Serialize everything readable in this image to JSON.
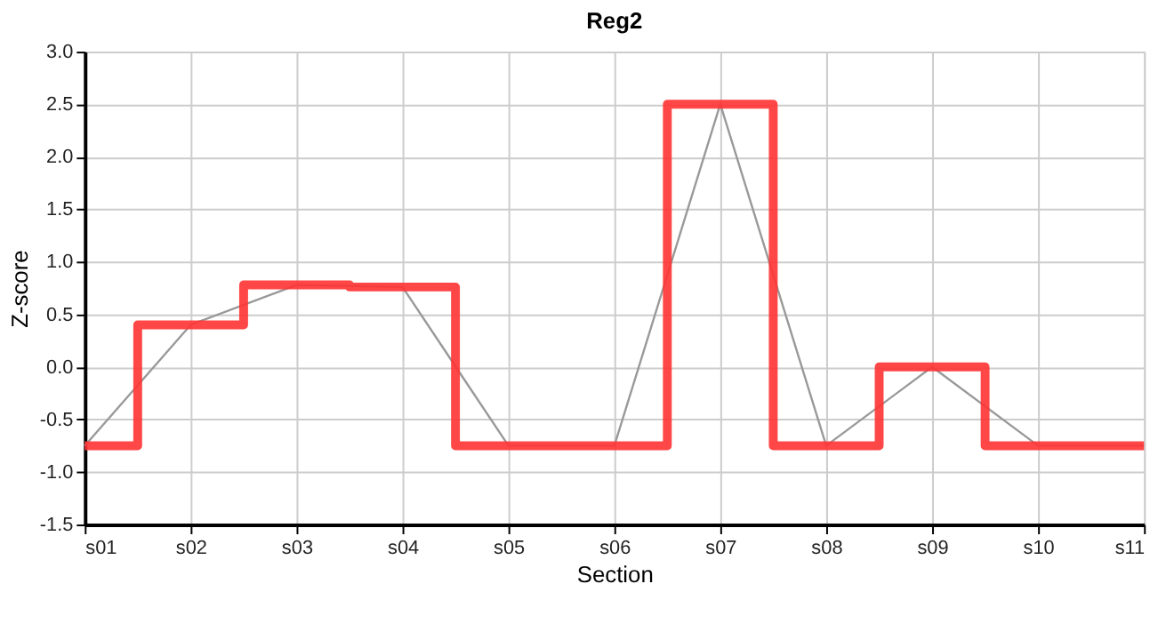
{
  "chart_data": {
    "type": "line",
    "title": "Reg2",
    "xlabel": "Section",
    "ylabel": "Z-score",
    "categories": [
      "s01",
      "s02",
      "s03",
      "s04",
      "s05",
      "s06",
      "s07",
      "s08",
      "s09",
      "s10",
      "s11"
    ],
    "series": [
      {
        "color": "#999999",
        "values": [
          -0.75,
          0.4,
          0.78,
          0.76,
          -0.75,
          -0.75,
          2.5,
          -0.75,
          0.0,
          -0.75,
          -0.75
        ]
      },
      {
        "type": "step",
        "color": "#ff3333",
        "values": [
          -0.75,
          0.4,
          0.78,
          0.76,
          -0.75,
          -0.75,
          2.5,
          -0.75,
          0.0,
          -0.75,
          -0.75
        ]
      }
    ],
    "ylim": [
      -1.5,
      3.0
    ],
    "yticks": [
      {
        "value": -1.5,
        "label": "-1.5"
      },
      {
        "value": -1,
        "label": "-1.0"
      },
      {
        "value": -0.5,
        "label": "-0.5"
      },
      {
        "value": 0,
        "label": "0.0"
      },
      {
        "value": 0.5,
        "label": "0.5"
      },
      {
        "value": 1,
        "label": "1.0"
      },
      {
        "value": 1.5,
        "label": "1.5"
      },
      {
        "value": 2,
        "label": "2.0"
      },
      {
        "value": 2.5,
        "label": "2.5"
      },
      {
        "value": 3,
        "label": "3.0"
      }
    ],
    "grid": true,
    "marker": "none",
    "line_style": "solid"
  }
}
